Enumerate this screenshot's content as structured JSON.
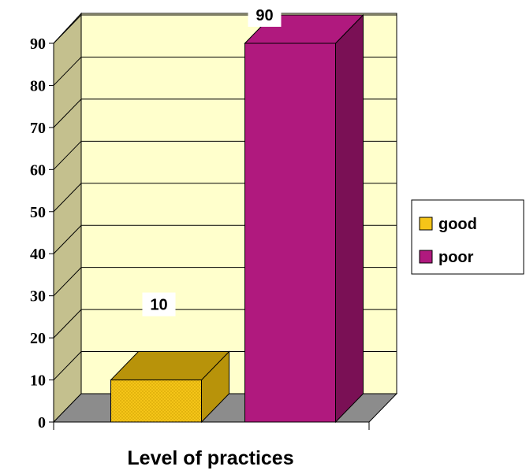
{
  "chart_data": {
    "type": "bar",
    "style": "3d-column",
    "categories": [
      "good",
      "poor"
    ],
    "values": [
      10,
      90
    ],
    "data_labels": [
      "10",
      "90"
    ],
    "title": "",
    "xlabel": "Level of practices",
    "ylabel": "",
    "ylim": [
      0,
      90
    ],
    "yticks": [
      "0",
      "10",
      "20",
      "30",
      "40",
      "50",
      "60",
      "70",
      "80",
      "90"
    ],
    "grid": true,
    "legend": {
      "placement": "right",
      "entries": [
        "good",
        "poor"
      ]
    },
    "colors": {
      "good": "#F5C518",
      "good_side": "#B8930A",
      "poor": "#B0197E",
      "poor_side": "#7A1055",
      "wall": "#FFFFCC",
      "side_wall": "#C4C08E",
      "floor": "#8C8C8C"
    }
  }
}
